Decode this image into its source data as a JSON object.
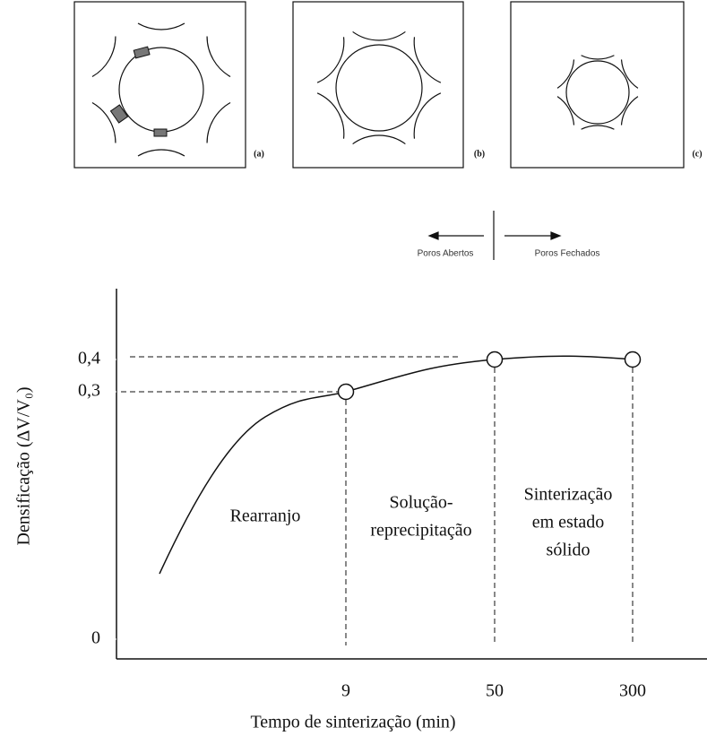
{
  "panels": [
    {
      "label": "(a)"
    },
    {
      "label": "(b)"
    },
    {
      "label": "(c)"
    }
  ],
  "pores": {
    "open": "Poros Abertos",
    "closed": "Poros Fechados"
  },
  "chart_data": {
    "type": "line",
    "x_label": "Tempo de sinterização (min)",
    "y_label": "Densificação (ΔV/V₀)",
    "categories": [
      "9",
      "50",
      "300"
    ],
    "values": [
      0.3,
      0.4,
      0.4
    ],
    "yticks": [
      {
        "value": 0,
        "label": "0"
      },
      {
        "value": 0.3,
        "label": "0,3"
      },
      {
        "value": 0.4,
        "label": "0,4"
      }
    ],
    "stages": [
      [
        "Rearranjo"
      ],
      [
        "Solução-",
        "reprecipitação"
      ],
      [
        "Sinterização",
        "em estado",
        "sólido"
      ]
    ]
  }
}
